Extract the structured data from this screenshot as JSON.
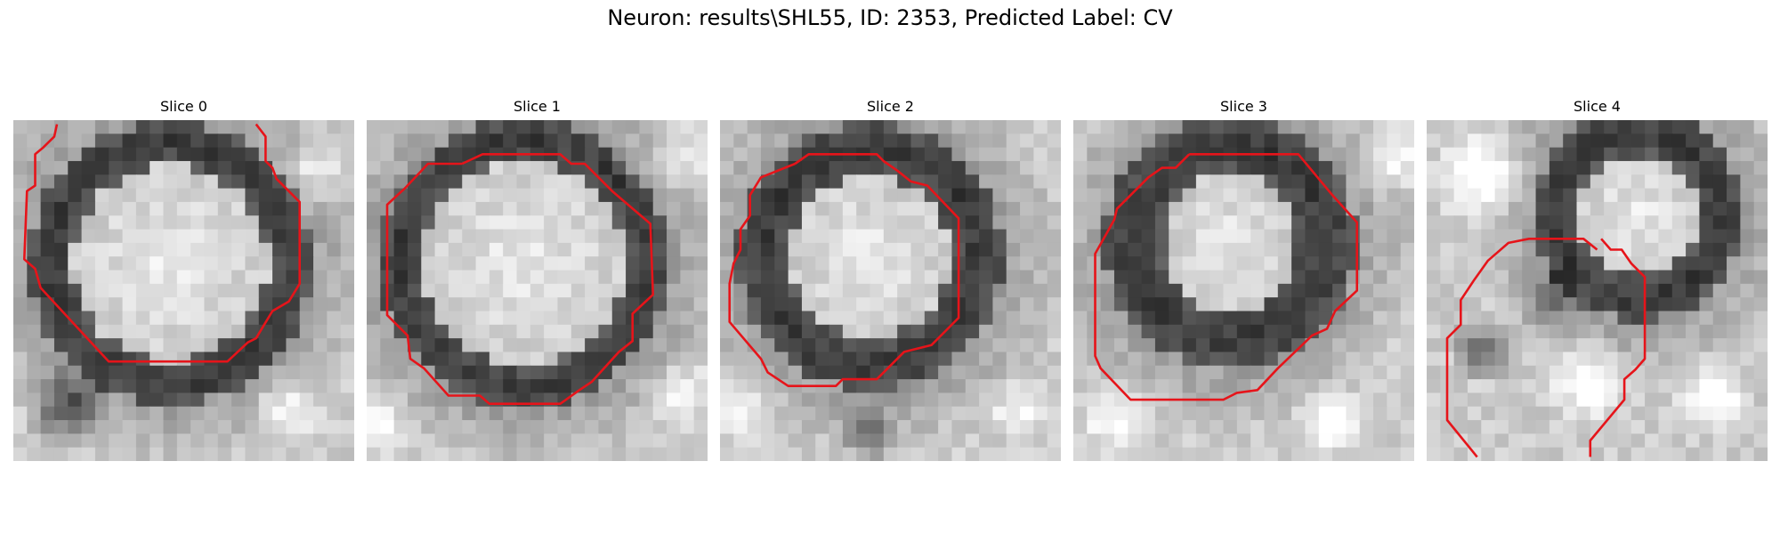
{
  "figure": {
    "suptitle": "Neuron: results\\SHL55, ID: 2353, Predicted Label: CV"
  },
  "panels": [
    {
      "title": "Slice 0"
    },
    {
      "title": "Slice 1"
    },
    {
      "title": "Slice 2"
    },
    {
      "title": "Slice 3"
    },
    {
      "title": "Slice 4"
    }
  ],
  "colors": {
    "contour": "#e6141a",
    "background": "#ffffff"
  },
  "image": {
    "colormap": "grayscale",
    "grid_size": 25
  }
}
